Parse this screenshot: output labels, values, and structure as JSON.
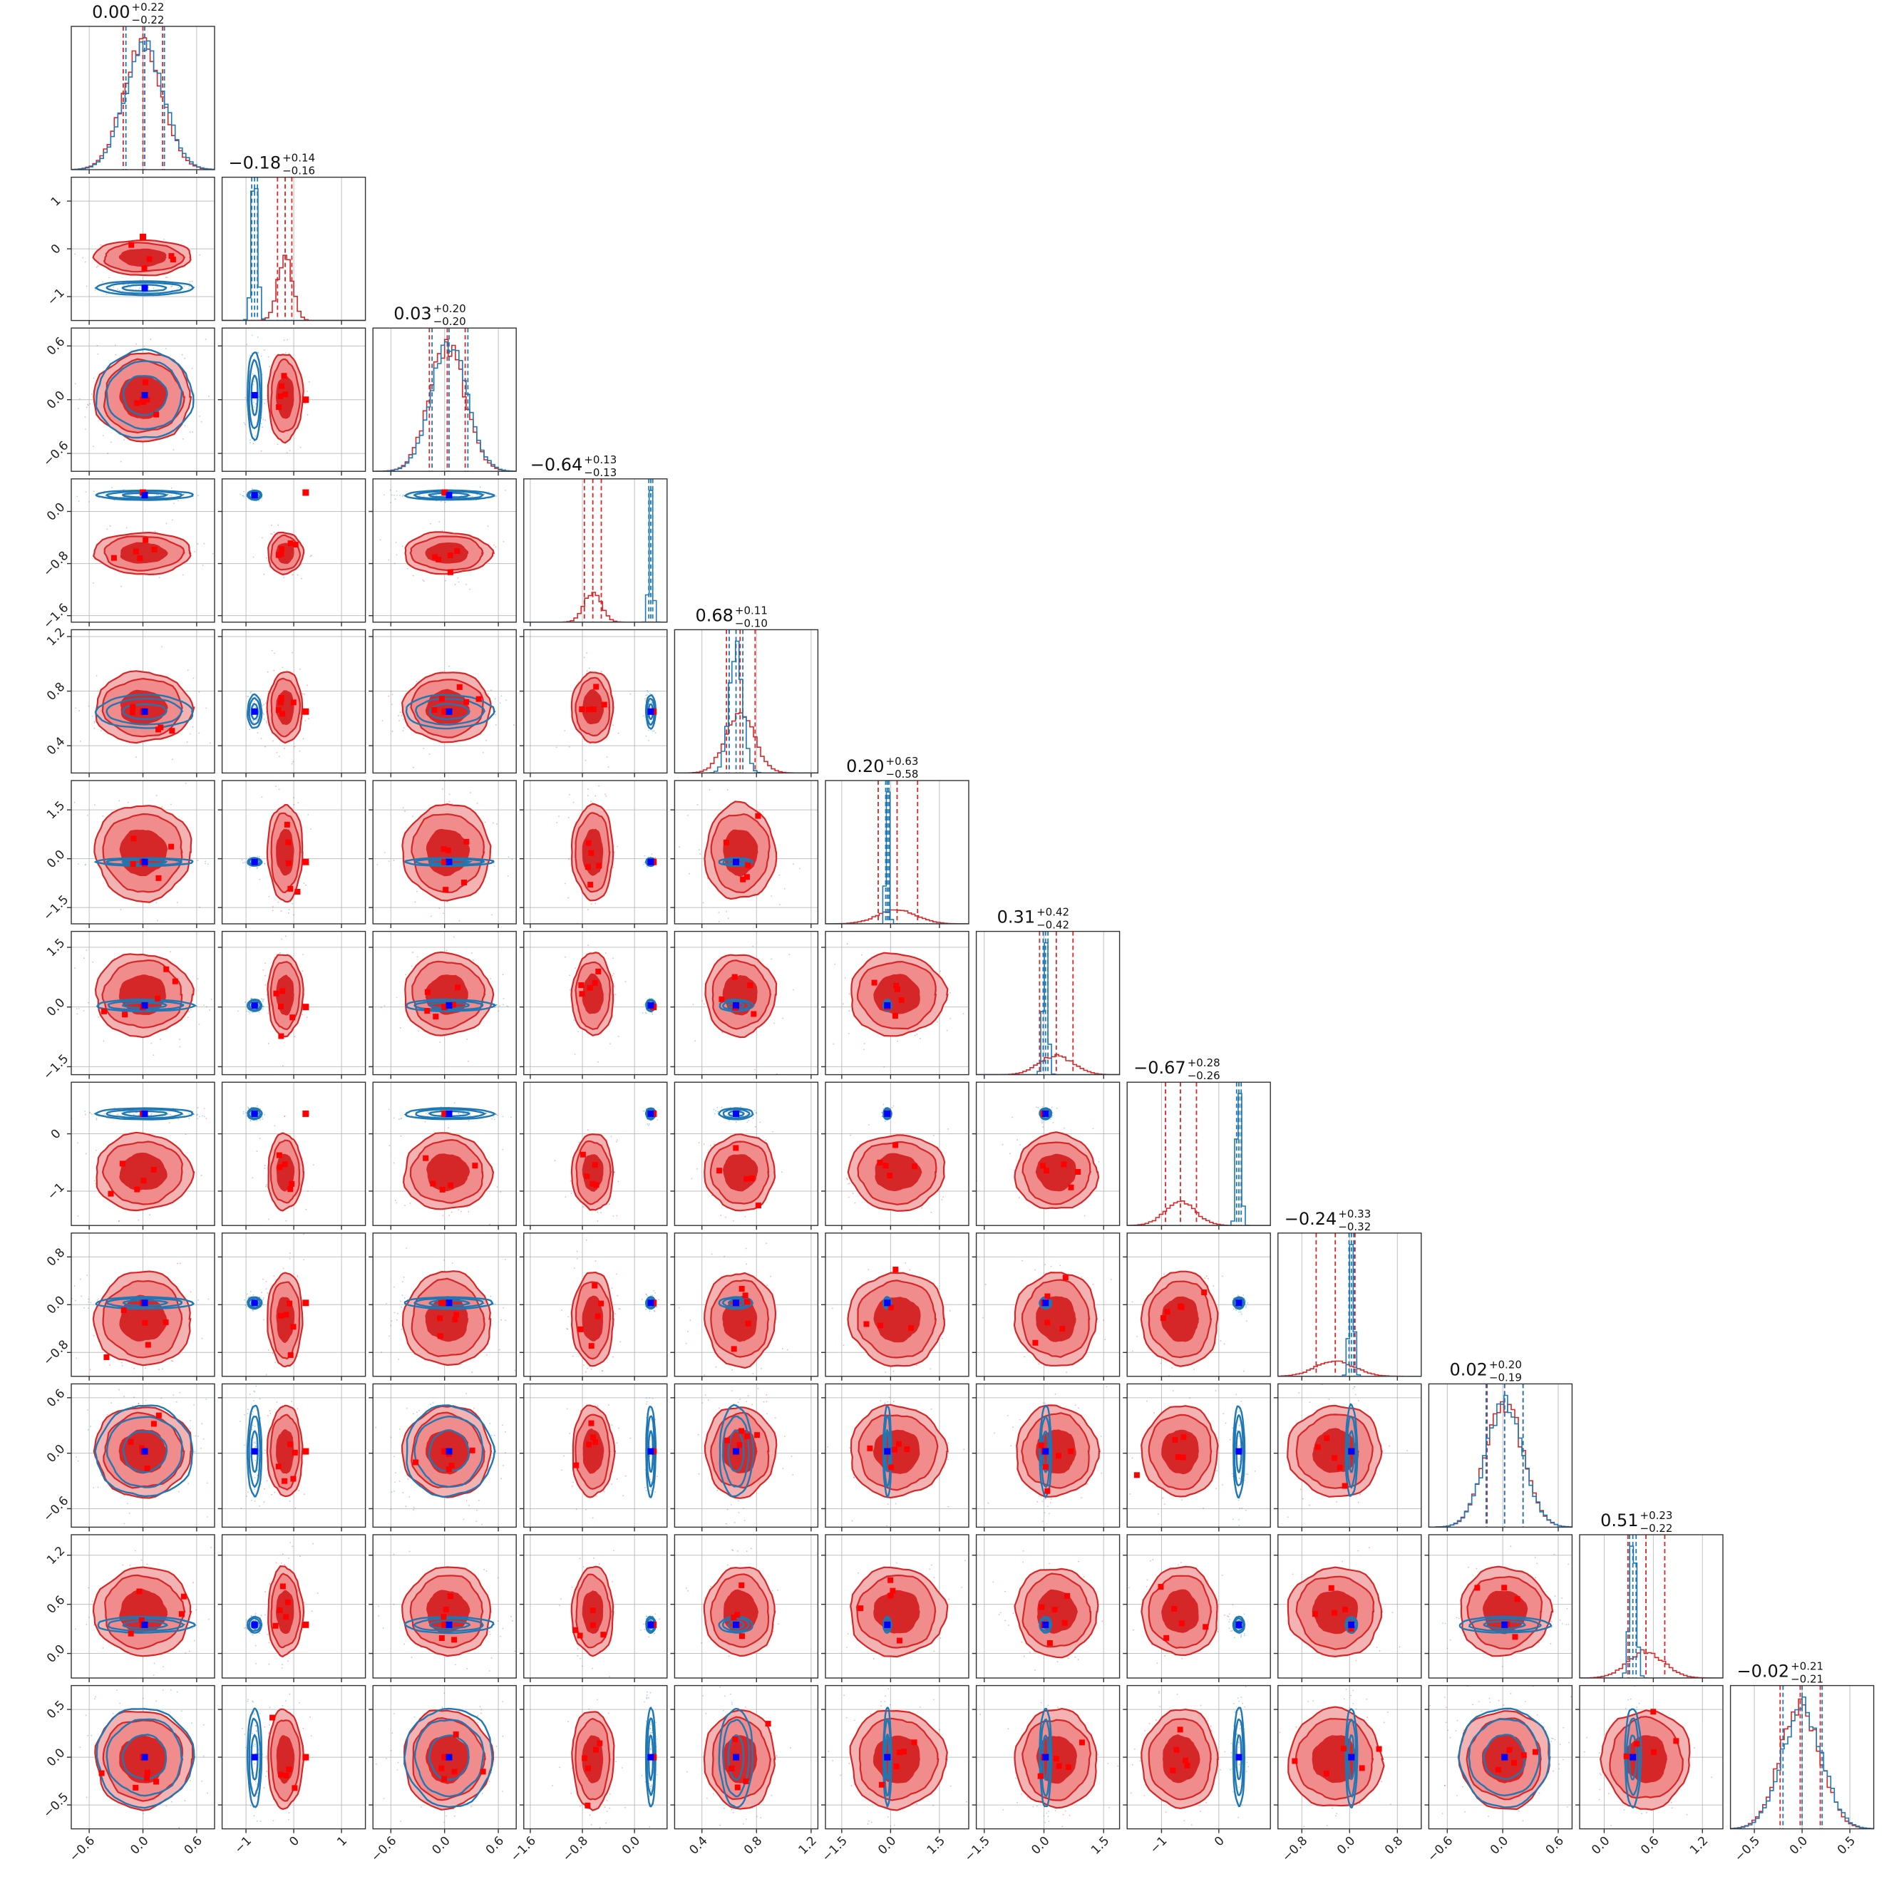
{
  "chart_data": {
    "type": "corner",
    "colors": {
      "red": "#d62728",
      "red_fill_outer": "#f08c8c",
      "red_fill_inner": "#d62728",
      "blue": "#1f77b4",
      "blue_marker": "#0000ff",
      "red_marker": "#ff0000"
    },
    "grid": true,
    "titles": [
      {
        "value": "0.00",
        "plus": "+0.22",
        "minus": "−0.22"
      },
      {
        "value": "−0.18",
        "plus": "+0.14",
        "minus": "−0.16"
      },
      {
        "value": "0.03",
        "plus": "+0.20",
        "minus": "−0.20"
      },
      {
        "value": "−0.64",
        "plus": "+0.13",
        "minus": "−0.13"
      },
      {
        "value": "0.68",
        "plus": "+0.11",
        "minus": "−0.10"
      },
      {
        "value": "0.20",
        "plus": "+0.63",
        "minus": "−0.58"
      },
      {
        "value": "0.31",
        "plus": "+0.42",
        "minus": "−0.42"
      },
      {
        "value": "−0.67",
        "plus": "+0.28",
        "minus": "−0.26"
      },
      {
        "value": "−0.24",
        "plus": "+0.33",
        "minus": "−0.32"
      },
      {
        "value": "0.02",
        "plus": "+0.20",
        "minus": "−0.19"
      },
      {
        "value": "0.51",
        "plus": "+0.23",
        "minus": "−0.22"
      },
      {
        "value": "−0.02",
        "plus": "+0.21",
        "minus": "−0.21"
      }
    ],
    "params": [
      {
        "range": [
          -0.8,
          0.8
        ],
        "ticks": [
          -0.6,
          0.0,
          0.6
        ],
        "tick_labels": [
          "−0.6",
          "0.0",
          "0.6"
        ],
        "red": {
          "mean": 0.0,
          "sd": 0.22,
          "q": [
            -0.22,
            0.0,
            0.22
          ]
        },
        "blue": {
          "mean": 0.02,
          "sd": 0.22,
          "q": [
            -0.19,
            0.02,
            0.24
          ]
        },
        "truth": 0.0
      },
      {
        "range": [
          -1.5,
          1.5
        ],
        "ticks": [
          -1,
          0,
          1
        ],
        "tick_labels": [
          "−1",
          "0",
          "1"
        ],
        "red": {
          "mean": -0.18,
          "sd": 0.15,
          "q": [
            -0.34,
            -0.18,
            -0.04
          ]
        },
        "blue": {
          "mean": -0.82,
          "sd": 0.06,
          "q": [
            -0.88,
            -0.82,
            -0.76
          ]
        },
        "truth": 0.25
      },
      {
        "range": [
          -0.8,
          0.8
        ],
        "ticks": [
          -0.6,
          0.0,
          0.6
        ],
        "tick_labels": [
          "−0.6",
          "0.0",
          "0.6"
        ],
        "red": {
          "mean": 0.03,
          "sd": 0.2,
          "q": [
            -0.17,
            0.03,
            0.23
          ]
        },
        "blue": {
          "mean": 0.05,
          "sd": 0.2,
          "q": [
            -0.14,
            0.05,
            0.26
          ]
        },
        "truth": 0.0
      },
      {
        "range": [
          -1.7,
          0.5
        ],
        "ticks": [
          -1.6,
          -0.8,
          0.0
        ],
        "tick_labels": [
          "−1.6",
          "−0.8",
          "0.0"
        ],
        "red": {
          "mean": -0.64,
          "sd": 0.13,
          "q": [
            -0.77,
            -0.64,
            -0.51
          ]
        },
        "blue": {
          "mean": 0.25,
          "sd": 0.03,
          "q": [
            0.22,
            0.25,
            0.28
          ]
        },
        "truth": 0.29
      },
      {
        "range": [
          0.2,
          1.25
        ],
        "ticks": [
          0.4,
          0.8,
          1.2
        ],
        "tick_labels": [
          "0.4",
          "0.8",
          "1.2"
        ],
        "red": {
          "mean": 0.68,
          "sd": 0.105,
          "q": [
            0.58,
            0.68,
            0.79
          ]
        },
        "blue": {
          "mean": 0.65,
          "sd": 0.05,
          "q": [
            0.6,
            0.65,
            0.7
          ]
        },
        "truth": 0.65
      },
      {
        "range": [
          -2.0,
          2.4
        ],
        "ticks": [
          -1.5,
          0.0,
          1.5
        ],
        "tick_labels": [
          "−1.5",
          "0.0",
          "1.5"
        ],
        "red": {
          "mean": 0.2,
          "sd": 0.6,
          "q": [
            -0.38,
            0.2,
            0.83
          ]
        },
        "blue": {
          "mean": -0.1,
          "sd": 0.05,
          "q": [
            -0.15,
            -0.1,
            -0.05
          ]
        },
        "truth": -0.1
      },
      {
        "range": [
          -1.7,
          1.9
        ],
        "ticks": [
          -1.5,
          0.0,
          1.5
        ],
        "tick_labels": [
          "−1.5",
          "0.0",
          "1.5"
        ],
        "red": {
          "mean": 0.31,
          "sd": 0.42,
          "q": [
            -0.11,
            0.31,
            0.73
          ]
        },
        "blue": {
          "mean": 0.04,
          "sd": 0.06,
          "q": [
            -0.02,
            0.04,
            0.1
          ]
        },
        "truth": 0.0
      },
      {
        "range": [
          -1.6,
          0.9
        ],
        "ticks": [
          -1,
          0
        ],
        "tick_labels": [
          "−1",
          "0"
        ],
        "red": {
          "mean": -0.67,
          "sd": 0.27,
          "q": [
            -0.93,
            -0.67,
            -0.39
          ]
        },
        "blue": {
          "mean": 0.35,
          "sd": 0.04,
          "q": [
            0.31,
            0.35,
            0.39
          ]
        },
        "truth": 0.35
      },
      {
        "range": [
          -1.2,
          1.2
        ],
        "ticks": [
          -0.8,
          0.0,
          0.8
        ],
        "tick_labels": [
          "−0.8",
          "0.0",
          "0.8"
        ],
        "red": {
          "mean": -0.24,
          "sd": 0.32,
          "q": [
            -0.56,
            -0.24,
            0.09
          ]
        },
        "blue": {
          "mean": 0.03,
          "sd": 0.04,
          "q": [
            -0.01,
            0.03,
            0.07
          ]
        },
        "truth": 0.03
      },
      {
        "range": [
          -0.8,
          0.75
        ],
        "ticks": [
          -0.6,
          0.0,
          0.6
        ],
        "tick_labels": [
          "−0.6",
          "0.0",
          "0.6"
        ],
        "red": {
          "mean": 0.02,
          "sd": 0.2,
          "q": [
            -0.17,
            0.02,
            0.22
          ]
        },
        "blue": {
          "mean": 0.02,
          "sd": 0.2,
          "q": [
            -0.18,
            0.02,
            0.22
          ]
        },
        "truth": 0.02
      },
      {
        "range": [
          -0.3,
          1.45
        ],
        "ticks": [
          0.0,
          0.6,
          1.2
        ],
        "tick_labels": [
          "0.0",
          "0.6",
          "1.2"
        ],
        "red": {
          "mean": 0.51,
          "sd": 0.22,
          "q": [
            0.29,
            0.51,
            0.74
          ]
        },
        "blue": {
          "mean": 0.35,
          "sd": 0.04,
          "q": [
            0.31,
            0.35,
            0.39
          ]
        },
        "truth": 0.35
      },
      {
        "range": [
          -0.75,
          0.75
        ],
        "ticks": [
          -0.5,
          0.0,
          0.5
        ],
        "tick_labels": [
          "−0.5",
          "0.0",
          "0.5"
        ],
        "red": {
          "mean": -0.02,
          "sd": 0.21,
          "q": [
            -0.23,
            -0.02,
            0.19
          ]
        },
        "blue": {
          "mean": 0.0,
          "sd": 0.21,
          "q": [
            -0.2,
            0.0,
            0.21
          ]
        },
        "truth": 0.0
      }
    ]
  }
}
